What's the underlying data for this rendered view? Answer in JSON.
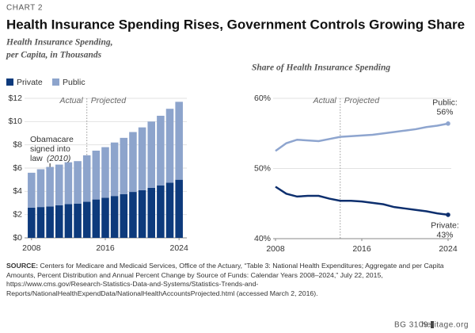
{
  "header": {
    "kicker": "CHART 2",
    "title": "Health Insurance Spending Rises, Government Controls Growing Share"
  },
  "chart_data": [
    {
      "type": "bar",
      "stacked": true,
      "subtitle": [
        "Health Insurance Spending,",
        "per Capita, in Thousands"
      ],
      "x": [
        2008,
        2009,
        2010,
        2011,
        2012,
        2013,
        2014,
        2015,
        2016,
        2017,
        2018,
        2019,
        2020,
        2021,
        2022,
        2023,
        2024
      ],
      "series": [
        {
          "name": "Private",
          "color": "#0d3a7c",
          "values": [
            2.6,
            2.65,
            2.7,
            2.8,
            2.9,
            2.95,
            3.1,
            3.3,
            3.45,
            3.6,
            3.75,
            3.95,
            4.1,
            4.3,
            4.5,
            4.75,
            5.0
          ]
        },
        {
          "name": "Public",
          "color": "#8da4cc",
          "values": [
            3.0,
            3.25,
            3.4,
            3.5,
            3.6,
            3.65,
            4.0,
            4.2,
            4.35,
            4.6,
            4.85,
            5.15,
            5.4,
            5.7,
            6.0,
            6.35,
            6.7
          ]
        }
      ],
      "xlim": [
        2007.5,
        2024.5
      ],
      "xticks": [
        2008,
        2016,
        2024
      ],
      "ylim": [
        0,
        12
      ],
      "yticks": [
        {
          "value": 0,
          "label": "$0"
        },
        {
          "value": 2,
          "label": "$2"
        },
        {
          "value": 4,
          "label": "$4"
        },
        {
          "value": 6,
          "label": "$6"
        },
        {
          "value": 8,
          "label": "$8"
        },
        {
          "value": 10,
          "label": "$10"
        },
        {
          "value": 12,
          "label": "$12"
        }
      ],
      "grid": true,
      "divider_x": 2014,
      "divider_labels": [
        "Actual",
        "Projected"
      ],
      "annotation": {
        "lines": [
          "Obamacare",
          "signed into",
          "law"
        ],
        "emphasis": "(2010)",
        "x": 2010
      }
    },
    {
      "type": "line",
      "subtitle": [
        "Share of Health Insurance Spending"
      ],
      "x": [
        2008,
        2009,
        2010,
        2011,
        2012,
        2013,
        2014,
        2015,
        2016,
        2017,
        2018,
        2019,
        2020,
        2021,
        2022,
        2023,
        2024
      ],
      "series": [
        {
          "name": "Public:",
          "color": "#8ea5cf",
          "values": [
            52.5,
            53.6,
            54.1,
            54.0,
            53.9,
            54.2,
            54.5,
            54.6,
            54.7,
            54.8,
            55.0,
            55.2,
            55.4,
            55.6,
            55.9,
            56.1,
            56.4
          ],
          "value_labels": [
            null,
            null,
            null,
            null,
            null,
            null,
            null,
            null,
            null,
            null,
            null,
            null,
            null,
            null,
            null,
            null,
            "56%"
          ]
        },
        {
          "name": "Private:",
          "color": "#0d2f6e",
          "values": [
            47.4,
            46.4,
            46.0,
            46.1,
            46.1,
            45.7,
            45.4,
            45.4,
            45.3,
            45.1,
            44.9,
            44.5,
            44.3,
            44.1,
            43.9,
            43.6,
            43.4
          ],
          "value_labels": [
            null,
            null,
            null,
            null,
            null,
            null,
            null,
            null,
            null,
            null,
            null,
            null,
            null,
            null,
            null,
            null,
            "43%"
          ]
        }
      ],
      "xlim": [
        2008,
        2024
      ],
      "xticks": [
        2008,
        2016,
        2024
      ],
      "ylim": [
        40,
        60
      ],
      "yticks": [
        {
          "value": 40,
          "label": "40%"
        },
        {
          "value": 50,
          "label": "50%"
        },
        {
          "value": 60,
          "label": "60%"
        }
      ],
      "grid": true,
      "divider_x": 2014,
      "divider_labels": [
        "Actual",
        "Projected"
      ]
    }
  ],
  "source": {
    "label": "SOURCE:",
    "text": "Centers for Medicare and Medicaid Services, Office of the Actuary, “Table 3: National Health Expenditures; Aggregate and per Capita Amounts, Percent Distribution and Annual Percent Change by Source of Funds: Calendar Years 2008–2024,” July 22, 2015, https://www.cms.gov/Research-Statistics-Data-and-Systems/Statistics-Trends-and-Reports/NationalHealthExpendData/NationalHealthAccountsProjected.html (accessed March 2, 2016)."
  },
  "footer": {
    "code": "BG 3109",
    "site": "heritage.org"
  }
}
